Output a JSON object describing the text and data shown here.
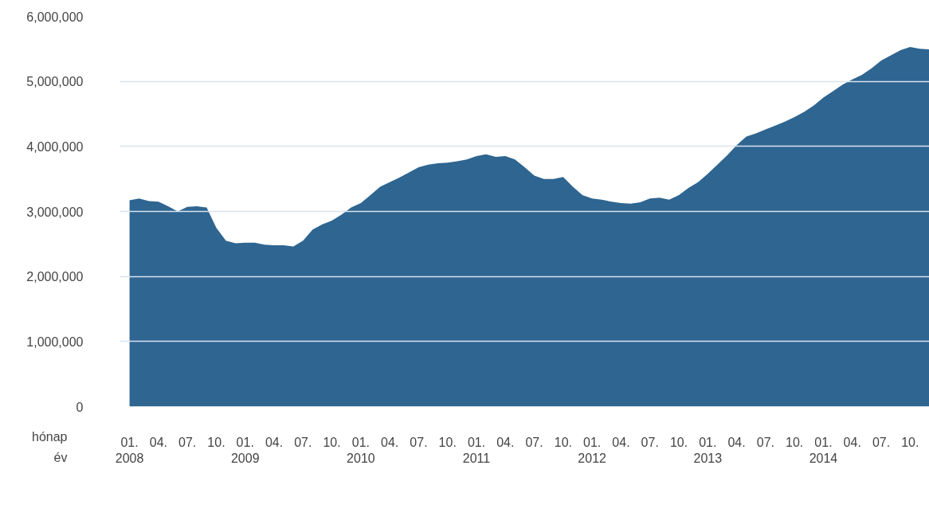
{
  "chart_data": {
    "type": "area",
    "x": [
      "2008-01",
      "2008-02",
      "2008-03",
      "2008-04",
      "2008-05",
      "2008-06",
      "2008-07",
      "2008-08",
      "2008-09",
      "2008-10",
      "2008-11",
      "2008-12",
      "2009-01",
      "2009-02",
      "2009-03",
      "2009-04",
      "2009-05",
      "2009-06",
      "2009-07",
      "2009-08",
      "2009-09",
      "2009-10",
      "2009-11",
      "2009-12",
      "2010-01",
      "2010-02",
      "2010-03",
      "2010-04",
      "2010-05",
      "2010-06",
      "2010-07",
      "2010-08",
      "2010-09",
      "2010-10",
      "2010-11",
      "2010-12",
      "2011-01",
      "2011-02",
      "2011-03",
      "2011-04",
      "2011-05",
      "2011-06",
      "2011-07",
      "2011-08",
      "2011-09",
      "2011-10",
      "2011-11",
      "2011-12",
      "2012-01",
      "2012-02",
      "2012-03",
      "2012-04",
      "2012-05",
      "2012-06",
      "2012-07",
      "2012-08",
      "2012-09",
      "2012-10",
      "2012-11",
      "2012-12",
      "2013-01",
      "2013-02",
      "2013-03",
      "2013-04",
      "2013-05",
      "2013-06",
      "2013-07",
      "2013-08",
      "2013-09",
      "2013-10",
      "2013-11",
      "2013-12",
      "2014-01",
      "2014-02",
      "2014-03",
      "2014-04",
      "2014-05",
      "2014-06",
      "2014-07",
      "2014-08",
      "2014-09",
      "2014-10",
      "2014-11",
      "2014-12"
    ],
    "series": [
      {
        "color": "#2e6591",
        "values": [
          3170000,
          3200000,
          3160000,
          3150000,
          3080000,
          3000000,
          3070000,
          3080000,
          3060000,
          2750000,
          2550000,
          2510000,
          2520000,
          2520000,
          2490000,
          2480000,
          2480000,
          2460000,
          2550000,
          2720000,
          2800000,
          2860000,
          2950000,
          3060000,
          3130000,
          3250000,
          3380000,
          3450000,
          3520000,
          3600000,
          3680000,
          3720000,
          3740000,
          3750000,
          3770000,
          3800000,
          3850000,
          3880000,
          3840000,
          3850000,
          3800000,
          3680000,
          3550000,
          3500000,
          3500000,
          3530000,
          3380000,
          3250000,
          3200000,
          3180000,
          3150000,
          3130000,
          3120000,
          3140000,
          3200000,
          3210000,
          3180000,
          3250000,
          3360000,
          3450000,
          3580000,
          3720000,
          3860000,
          4020000,
          4150000,
          4200000,
          4260000,
          4320000,
          4380000,
          4450000,
          4530000,
          4630000,
          4750000,
          4850000,
          4950000,
          5030000,
          5100000,
          5200000,
          5320000,
          5400000,
          5480000,
          5530000,
          5500000,
          5490000
        ]
      }
    ],
    "xlim": [
      "2007-12",
      "2014-12"
    ],
    "xticks": [
      {
        "value": "2008-01",
        "label": "01.\n2008"
      },
      {
        "value": "2008-04",
        "label": "04."
      },
      {
        "value": "2008-07",
        "label": "07."
      },
      {
        "value": "2008-10",
        "label": "10."
      },
      {
        "value": "2009-01",
        "label": "01.\n2009"
      },
      {
        "value": "2009-04",
        "label": "04."
      },
      {
        "value": "2009-07",
        "label": "07."
      },
      {
        "value": "2009-10",
        "label": "10."
      },
      {
        "value": "2010-01",
        "label": "01.\n2010"
      },
      {
        "value": "2010-04",
        "label": "04."
      },
      {
        "value": "2010-07",
        "label": "07."
      },
      {
        "value": "2010-10",
        "label": "10."
      },
      {
        "value": "2011-01",
        "label": "01.\n2011"
      },
      {
        "value": "2011-04",
        "label": "04."
      },
      {
        "value": "2011-07",
        "label": "07."
      },
      {
        "value": "2011-10",
        "label": "10."
      },
      {
        "value": "2012-01",
        "label": "01.\n2012"
      },
      {
        "value": "2012-04",
        "label": "04."
      },
      {
        "value": "2012-07",
        "label": "07."
      },
      {
        "value": "2012-10",
        "label": "10."
      },
      {
        "value": "2013-01",
        "label": "01.\n2013"
      },
      {
        "value": "2013-04",
        "label": "04."
      },
      {
        "value": "2013-07",
        "label": "07."
      },
      {
        "value": "2013-10",
        "label": "10."
      },
      {
        "value": "2014-01",
        "label": "01.\n2014"
      },
      {
        "value": "2014-04",
        "label": "04."
      },
      {
        "value": "2014-07",
        "label": "07."
      },
      {
        "value": "2014-10",
        "label": "10."
      }
    ],
    "ylim": [
      0,
      6000000
    ],
    "yticks": [
      {
        "value": 0,
        "label": "0"
      },
      {
        "value": 1000000,
        "label": "1,000,000"
      },
      {
        "value": 2000000,
        "label": "2,000,000"
      },
      {
        "value": 3000000,
        "label": "3,000,000"
      },
      {
        "value": 4000000,
        "label": "4,000,000"
      },
      {
        "value": 5000000,
        "label": "5,000,000"
      },
      {
        "value": 6000000,
        "label": "6,000,000"
      }
    ],
    "grid": "y",
    "annotations": [
      "hónap",
      "év"
    ]
  }
}
